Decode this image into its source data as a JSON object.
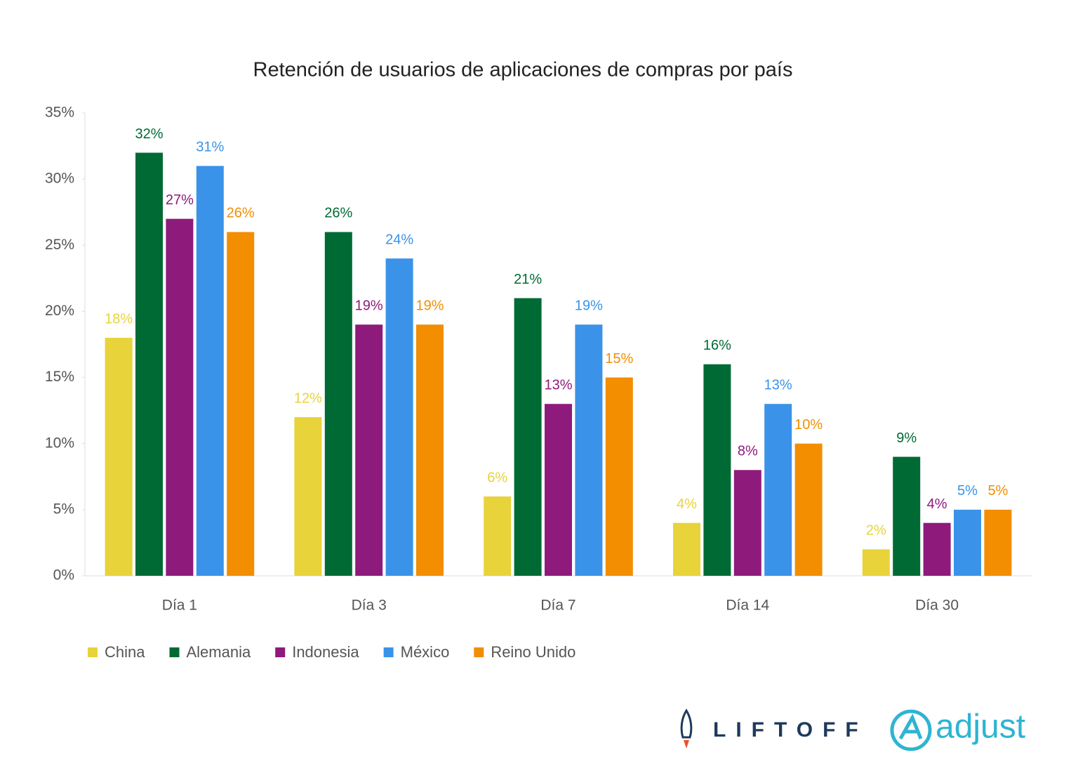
{
  "chart_data": {
    "type": "bar",
    "title": "Retención de usuarios de aplicaciones de compras por país",
    "categories": [
      "Día 1",
      "Día 3",
      "Día 7",
      "Día 14",
      "Día 30"
    ],
    "series": [
      {
        "name": "China",
        "color": "#e8d33a",
        "values": [
          18,
          12,
          6,
          4,
          2
        ],
        "value_labels": [
          "18%",
          "12%",
          "6%",
          "4%",
          "2%"
        ]
      },
      {
        "name": "Alemania",
        "color": "#006a35",
        "values": [
          32,
          26,
          21,
          16,
          9
        ],
        "value_labels": [
          "32%",
          "26%",
          "21%",
          "16%",
          "9%"
        ]
      },
      {
        "name": "Indonesia",
        "color": "#8e1a7c",
        "values": [
          27,
          19,
          13,
          8,
          4
        ],
        "value_labels": [
          "27%",
          "19%",
          "13%",
          "8%",
          "4%"
        ]
      },
      {
        "name": "México",
        "color": "#3a93e8",
        "values": [
          31,
          24,
          19,
          13,
          5
        ],
        "value_labels": [
          "31%",
          "24%",
          "19%",
          "13%",
          "5%"
        ]
      },
      {
        "name": "Reino Unido",
        "color": "#f28e00",
        "values": [
          26,
          19,
          15,
          10,
          5
        ],
        "value_labels": [
          "26%",
          "19%",
          "15%",
          "10%",
          "5%"
        ]
      }
    ],
    "ylim": [
      0,
      35
    ],
    "yticks": [
      {
        "value": 0,
        "label": "0%"
      },
      {
        "value": 5,
        "label": "5%"
      },
      {
        "value": 10,
        "label": "10%"
      },
      {
        "value": 15,
        "label": "15%"
      },
      {
        "value": 20,
        "label": "20%"
      },
      {
        "value": 25,
        "label": "25%"
      },
      {
        "value": 30,
        "label": "30%"
      },
      {
        "value": 35,
        "label": "35%"
      }
    ],
    "grid": false,
    "legend": "bottom-left",
    "logos": [
      "LIFTOFF",
      "adjust"
    ]
  }
}
